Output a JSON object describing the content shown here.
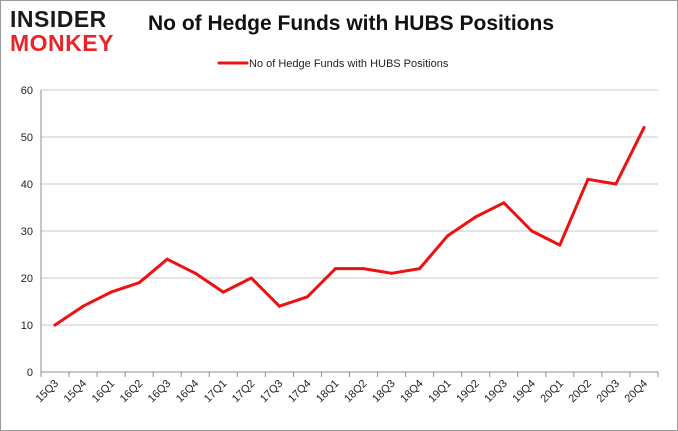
{
  "logo": {
    "line1": "INSIDER",
    "line2": "MONKEY"
  },
  "chart_data": {
    "type": "line",
    "title": "No of Hedge Funds with HUBS Positions",
    "xlabel": "",
    "ylabel": "",
    "categories": [
      "15Q3",
      "15Q4",
      "16Q1",
      "16Q2",
      "16Q3",
      "16Q4",
      "17Q1",
      "17Q2",
      "17Q3",
      "17Q4",
      "18Q1",
      "18Q2",
      "18Q3",
      "18Q4",
      "19Q1",
      "19Q2",
      "19Q3",
      "19Q4",
      "20Q1",
      "20Q2",
      "20Q3",
      "20Q4"
    ],
    "series": [
      {
        "name": "No of Hedge Funds with HUBS Positions",
        "values": [
          10,
          14,
          17,
          19,
          24,
          21,
          17,
          20,
          14,
          16,
          22,
          22,
          21,
          22,
          29,
          33,
          36,
          30,
          27,
          41,
          40,
          52
        ]
      }
    ],
    "ylim": [
      0,
      60
    ],
    "yticks": [
      0,
      10,
      20,
      30,
      40,
      50,
      60
    ],
    "grid": true,
    "legend": "top-center",
    "series_color": "#ee1111"
  }
}
